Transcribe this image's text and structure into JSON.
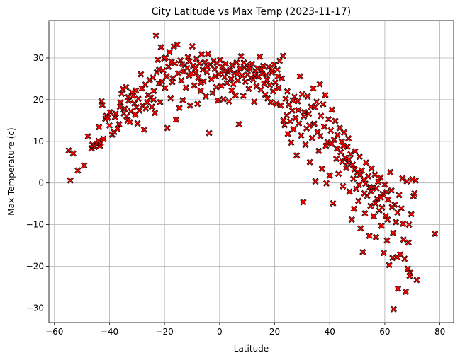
{
  "chart_data": {
    "type": "scatter",
    "title": "City Latitude vs Max Temp (2023-11-17)",
    "xlabel": "Latitude",
    "ylabel": "Max Temperature (c)",
    "xlim": [
      -62,
      85
    ],
    "ylim": [
      -33.5,
      39
    ],
    "xticks": [
      -60,
      -40,
      -20,
      0,
      20,
      40,
      60,
      80
    ],
    "yticks": [
      -30,
      -20,
      -10,
      0,
      10,
      20,
      30
    ],
    "grid": true,
    "marker": "X",
    "marker_color": "#ff0000",
    "marker_edge_color": "#000000",
    "points": [
      [
        -54.8,
        7.8
      ],
      [
        -54.2,
        0.6
      ],
      [
        -53.2,
        7.1
      ],
      [
        -51.5,
        3.0
      ],
      [
        -49.2,
        4.2
      ],
      [
        -47.8,
        11.2
      ],
      [
        -46.5,
        8.3
      ],
      [
        -46.2,
        9.2
      ],
      [
        -45.8,
        9.0
      ],
      [
        -45.3,
        8.7
      ],
      [
        -44.6,
        9.4
      ],
      [
        -43.8,
        13.4
      ],
      [
        -43.5,
        8.9
      ],
      [
        -43.2,
        9.6
      ],
      [
        -42.9,
        19.6
      ],
      [
        -42.6,
        18.7
      ],
      [
        -42.2,
        10.6
      ],
      [
        -41.5,
        15.4
      ],
      [
        -41.1,
        16.1
      ],
      [
        -40.6,
        15.7
      ],
      [
        -39.8,
        17.0
      ],
      [
        -39.0,
        11.6
      ],
      [
        -38.3,
        12.2
      ],
      [
        -38.0,
        15.8
      ],
      [
        -37.7,
        16.6
      ],
      [
        -37.1,
        13.0
      ],
      [
        -36.5,
        14.1
      ],
      [
        -36.0,
        19.3
      ],
      [
        -35.6,
        21.4
      ],
      [
        -35.1,
        22.5
      ],
      [
        -34.8,
        16.7
      ],
      [
        -34.4,
        17.8
      ],
      [
        -34.0,
        23.0
      ],
      [
        -33.8,
        16.0
      ],
      [
        -33.4,
        15.0
      ],
      [
        -33.0,
        19.8
      ],
      [
        -32.6,
        14.6
      ],
      [
        -32.2,
        17.2
      ],
      [
        -31.9,
        21.8
      ],
      [
        -31.4,
        20.9
      ],
      [
        -31.0,
        19.1
      ],
      [
        -30.6,
        16.4
      ],
      [
        -30.2,
        18.2
      ],
      [
        -29.8,
        14.3
      ],
      [
        -29.5,
        20.2
      ],
      [
        -29.1,
        17.4
      ],
      [
        -28.6,
        26.1
      ],
      [
        -28.2,
        22.7
      ],
      [
        -27.9,
        18.6
      ],
      [
        -27.4,
        12.8
      ],
      [
        -26.8,
        17.9
      ],
      [
        -26.3,
        19.4
      ],
      [
        -25.9,
        21.1
      ],
      [
        -25.4,
        24.7
      ],
      [
        -25.0,
        20.5
      ],
      [
        -24.6,
        18.3
      ],
      [
        -24.2,
        25.3
      ],
      [
        -23.9,
        22.1
      ],
      [
        -23.5,
        16.8
      ],
      [
        -23.1,
        35.4
      ],
      [
        -22.8,
        26.6
      ],
      [
        -22.4,
        29.6
      ],
      [
        -22.0,
        23.9
      ],
      [
        -21.6,
        19.4
      ],
      [
        -21.3,
        32.6
      ],
      [
        -20.9,
        24.3
      ],
      [
        -20.5,
        27.0
      ],
      [
        -20.1,
        29.9
      ],
      [
        -19.8,
        22.8
      ],
      [
        -19.3,
        25.6
      ],
      [
        -19.0,
        13.2
      ],
      [
        -18.6,
        27.9
      ],
      [
        -18.2,
        31.4
      ],
      [
        -17.8,
        20.3
      ],
      [
        -17.4,
        29.1
      ],
      [
        -17.0,
        25.1
      ],
      [
        -16.6,
        32.8
      ],
      [
        -16.2,
        28.7
      ],
      [
        -15.8,
        15.2
      ],
      [
        -15.4,
        33.2
      ],
      [
        -15.0,
        26.3
      ],
      [
        -14.6,
        18.0
      ],
      [
        -14.2,
        29.4
      ],
      [
        -13.9,
        24.6
      ],
      [
        -13.4,
        19.9
      ],
      [
        -13.0,
        26.8
      ],
      [
        -12.6,
        28.3
      ],
      [
        -12.2,
        22.9
      ],
      [
        -11.8,
        27.6
      ],
      [
        -11.5,
        30.2
      ],
      [
        -11.1,
        25.8
      ],
      [
        -10.7,
        18.6
      ],
      [
        -10.3,
        26.2
      ],
      [
        -9.9,
        32.8
      ],
      [
        -9.6,
        28.1
      ],
      [
        -9.2,
        23.4
      ],
      [
        -8.8,
        27.5
      ],
      [
        -8.4,
        29.8
      ],
      [
        -8.0,
        19.0
      ],
      [
        -7.7,
        25.3
      ],
      [
        -7.3,
        28.7
      ],
      [
        -6.9,
        22.1
      ],
      [
        -6.5,
        30.9
      ],
      [
        -6.1,
        27.2
      ],
      [
        -5.8,
        24.4
      ],
      [
        -5.4,
        29.0
      ],
      [
        -5.0,
        20.8
      ],
      [
        -4.6,
        26.6
      ],
      [
        -4.2,
        31.0
      ],
      [
        -3.8,
        12.0
      ],
      [
        -3.4,
        28.4
      ],
      [
        -3.0,
        24.9
      ],
      [
        -2.6,
        21.6
      ],
      [
        -2.2,
        29.3
      ],
      [
        -1.8,
        27.3
      ],
      [
        -1.4,
        25.6
      ],
      [
        -1.0,
        28.8
      ],
      [
        -0.6,
        19.8
      ],
      [
        -0.2,
        26.1
      ],
      [
        0.2,
        29.5
      ],
      [
        0.6,
        23.3
      ],
      [
        1.0,
        27.9
      ],
      [
        1.4,
        20.1
      ],
      [
        1.8,
        25.4
      ],
      [
        2.2,
        28.6
      ],
      [
        2.6,
        24.0
      ],
      [
        3.0,
        26.7
      ],
      [
        3.4,
        19.6
      ],
      [
        3.8,
        27.1
      ],
      [
        4.2,
        25.0
      ],
      [
        4.6,
        28.3
      ],
      [
        5.0,
        23.7
      ],
      [
        5.4,
        26.4
      ],
      [
        5.8,
        21.0
      ],
      [
        6.2,
        28.9
      ],
      [
        6.6,
        24.6
      ],
      [
        7.0,
        14.1
      ],
      [
        7.4,
        27.4
      ],
      [
        7.8,
        30.4
      ],
      [
        8.2,
        25.8
      ],
      [
        8.6,
        20.9
      ],
      [
        9.0,
        27.7
      ],
      [
        9.4,
        24.3
      ],
      [
        9.8,
        28.2
      ],
      [
        10.2,
        26.0
      ],
      [
        10.6,
        22.6
      ],
      [
        11.0,
        27.3
      ],
      [
        11.4,
        25.2
      ],
      [
        11.8,
        28.6
      ],
      [
        12.2,
        24.8
      ],
      [
        12.6,
        19.5
      ],
      [
        13.0,
        26.9
      ],
      [
        13.4,
        23.2
      ],
      [
        13.8,
        27.5
      ],
      [
        14.2,
        25.5
      ],
      [
        14.6,
        30.3
      ],
      [
        15.0,
        22.4
      ],
      [
        15.4,
        26.3
      ],
      [
        15.8,
        28.1
      ],
      [
        16.2,
        23.8
      ],
      [
        16.6,
        21.2
      ],
      [
        17.0,
        25.9
      ],
      [
        17.4,
        20.3
      ],
      [
        17.8,
        27.8
      ],
      [
        18.2,
        23.5
      ],
      [
        18.6,
        19.4
      ],
      [
        19.0,
        26.5
      ],
      [
        19.4,
        22.0
      ],
      [
        19.8,
        28.4
      ],
      [
        20.2,
        24.1
      ],
      [
        20.6,
        19.0
      ],
      [
        21.0,
        27.2
      ],
      [
        21.4,
        22.8
      ],
      [
        21.8,
        29.3
      ],
      [
        22.2,
        18.6
      ],
      [
        22.6,
        25.1
      ],
      [
        23.0,
        30.5
      ],
      [
        23.2,
        15.0
      ],
      [
        23.6,
        13.9
      ],
      [
        24.0,
        20.2
      ],
      [
        24.4,
        16.2
      ],
      [
        24.8,
        11.8
      ],
      [
        25.2,
        18.8
      ],
      [
        25.6,
        14.8
      ],
      [
        26.0,
        9.7
      ],
      [
        26.4,
        17.4
      ],
      [
        26.8,
        12.9
      ],
      [
        27.2,
        20.7
      ],
      [
        27.6,
        15.6
      ],
      [
        28.0,
        6.6
      ],
      [
        28.4,
        19.6
      ],
      [
        28.8,
        14.3
      ],
      [
        29.2,
        25.6
      ],
      [
        29.6,
        11.4
      ],
      [
        30.0,
        21.3
      ],
      [
        30.4,
        -4.6
      ],
      [
        30.8,
        17.0
      ],
      [
        31.2,
        9.2
      ],
      [
        31.6,
        13.1
      ],
      [
        32.0,
        20.8
      ],
      [
        32.4,
        16.6
      ],
      [
        32.8,
        5.0
      ],
      [
        33.2,
        18.3
      ],
      [
        33.6,
        10.8
      ],
      [
        34.0,
        22.7
      ],
      [
        34.4,
        14.2
      ],
      [
        34.8,
        0.4
      ],
      [
        35.2,
        19.5
      ],
      [
        35.6,
        12.2
      ],
      [
        36.0,
        7.7
      ],
      [
        36.4,
        23.7
      ],
      [
        36.8,
        16.1
      ],
      [
        37.2,
        3.4
      ],
      [
        37.6,
        18.9
      ],
      [
        38.0,
        13.5
      ],
      [
        38.4,
        21.1
      ],
      [
        38.8,
        -0.1
      ],
      [
        39.2,
        9.8
      ],
      [
        39.6,
        15.3
      ],
      [
        40.0,
        1.8
      ],
      [
        40.4,
        12.6
      ],
      [
        40.8,
        17.6
      ],
      [
        41.2,
        -4.9
      ],
      [
        41.6,
        10.4
      ],
      [
        42.0,
        14.9
      ],
      [
        42.4,
        5.8
      ],
      [
        42.8,
        11.5
      ],
      [
        43.2,
        2.2
      ],
      [
        43.6,
        13.2
      ],
      [
        44.0,
        7.4
      ],
      [
        44.4,
        9.9
      ],
      [
        44.8,
        -0.8
      ],
      [
        45.2,
        12.1
      ],
      [
        45.6,
        6.1
      ],
      [
        46.0,
        3.6
      ],
      [
        46.4,
        8.7
      ],
      [
        46.8,
        10.7
      ],
      [
        47.2,
        -2.1
      ],
      [
        47.6,
        6.9
      ],
      [
        48.0,
        -8.8
      ],
      [
        48.4,
        4.4
      ],
      [
        48.8,
        -6.2
      ],
      [
        49.2,
        7.6
      ],
      [
        49.6,
        -1.4
      ],
      [
        50.0,
        2.5
      ],
      [
        50.4,
        -4.3
      ],
      [
        50.8,
        6.3
      ],
      [
        51.2,
        -10.9
      ],
      [
        51.6,
        3.0
      ],
      [
        52.0,
        -16.6
      ],
      [
        52.4,
        0.8
      ],
      [
        52.8,
        -7.3
      ],
      [
        53.2,
        4.9
      ],
      [
        53.6,
        -3.1
      ],
      [
        54.0,
        1.6
      ],
      [
        54.4,
        -12.7
      ],
      [
        54.8,
        -5.5
      ],
      [
        55.2,
        3.5
      ],
      [
        55.6,
        -1.1
      ],
      [
        56.0,
        -8.0
      ],
      [
        56.4,
        2.0
      ],
      [
        56.8,
        -13.0
      ],
      [
        57.2,
        -3.8
      ],
      [
        57.6,
        0.3
      ],
      [
        58.0,
        -6.6
      ],
      [
        58.4,
        1.3
      ],
      [
        58.8,
        -10.3
      ],
      [
        59.2,
        -2.6
      ],
      [
        59.6,
        -16.8
      ],
      [
        60.0,
        -0.4
      ],
      [
        60.4,
        -7.9
      ],
      [
        60.8,
        -13.8
      ],
      [
        61.2,
        -4.0
      ],
      [
        61.6,
        -19.7
      ],
      [
        62.0,
        2.6
      ],
      [
        62.4,
        -1.8
      ],
      [
        62.8,
        -18.0
      ],
      [
        63.2,
        -30.3
      ],
      [
        63.6,
        -5.2
      ],
      [
        64.0,
        -9.4
      ],
      [
        64.4,
        -17.8
      ],
      [
        64.8,
        -25.4
      ],
      [
        65.2,
        -2.9
      ],
      [
        65.6,
        -17.2
      ],
      [
        66.0,
        -6.1
      ],
      [
        66.4,
        1.1
      ],
      [
        66.8,
        -13.6
      ],
      [
        67.2,
        -18.2
      ],
      [
        67.6,
        -26.1
      ],
      [
        68.0,
        0.4
      ],
      [
        68.4,
        -20.6
      ],
      [
        68.8,
        -10.0
      ],
      [
        69.2,
        -21.6
      ],
      [
        69.6,
        -7.5
      ],
      [
        70.0,
        0.9
      ],
      [
        70.4,
        -3.2
      ],
      [
        70.8,
        -2.5
      ],
      [
        71.2,
        0.6
      ],
      [
        71.6,
        -23.3
      ],
      [
        78.2,
        -12.2
      ],
      [
        -44.0,
        10.1
      ],
      [
        -40.0,
        13.8
      ],
      [
        -36.2,
        18.3
      ],
      [
        -33.2,
        20.6
      ],
      [
        -30.4,
        22.2
      ],
      [
        -27.0,
        23.6
      ],
      [
        -24.0,
        20.0
      ],
      [
        -22.0,
        27.2
      ],
      [
        -19.6,
        30.1
      ],
      [
        -17.2,
        24.2
      ],
      [
        -13.6,
        28.6
      ],
      [
        -11.0,
        29.2
      ],
      [
        -8.6,
        26.4
      ],
      [
        -6.8,
        24.1
      ],
      [
        -4.4,
        27.9
      ],
      [
        -1.2,
        23.0
      ],
      [
        1.6,
        26.8
      ],
      [
        4.4,
        22.2
      ],
      [
        6.4,
        26.1
      ],
      [
        8.8,
        28.9
      ],
      [
        10.8,
        27.9
      ],
      [
        12.8,
        25.9
      ],
      [
        15.2,
        27.2
      ],
      [
        17.2,
        24.8
      ],
      [
        19.2,
        27.1
      ],
      [
        21.2,
        25.6
      ],
      [
        24.6,
        22.0
      ],
      [
        26.6,
        19.9
      ],
      [
        28.6,
        17.5
      ],
      [
        30.6,
        16.0
      ],
      [
        32.6,
        13.8
      ],
      [
        34.6,
        18.2
      ],
      [
        36.6,
        11.3
      ],
      [
        38.6,
        8.9
      ],
      [
        40.6,
        9.4
      ],
      [
        42.6,
        8.2
      ],
      [
        44.6,
        5.1
      ],
      [
        46.6,
        4.9
      ],
      [
        48.6,
        1.0
      ],
      [
        50.6,
        -0.5
      ],
      [
        52.6,
        -2.5
      ],
      [
        54.6,
        -1.0
      ],
      [
        56.6,
        -4.9
      ],
      [
        58.6,
        -3.5
      ],
      [
        60.6,
        -2.2
      ],
      [
        62.6,
        -5.8
      ],
      [
        64.6,
        -7.1
      ],
      [
        66.6,
        -9.8
      ],
      [
        68.6,
        -14.3
      ],
      [
        69.0,
        -22.3
      ],
      [
        45.0,
        8.9
      ],
      [
        47.0,
        5.6
      ],
      [
        49.0,
        3.3
      ],
      [
        51.0,
        1.9
      ],
      [
        53.0,
        -0.2
      ],
      [
        55.0,
        -2.0
      ],
      [
        57.0,
        -1.3
      ],
      [
        59.0,
        -5.9
      ],
      [
        61.0,
        -8.8
      ],
      [
        63.0,
        -12.0
      ]
    ]
  }
}
